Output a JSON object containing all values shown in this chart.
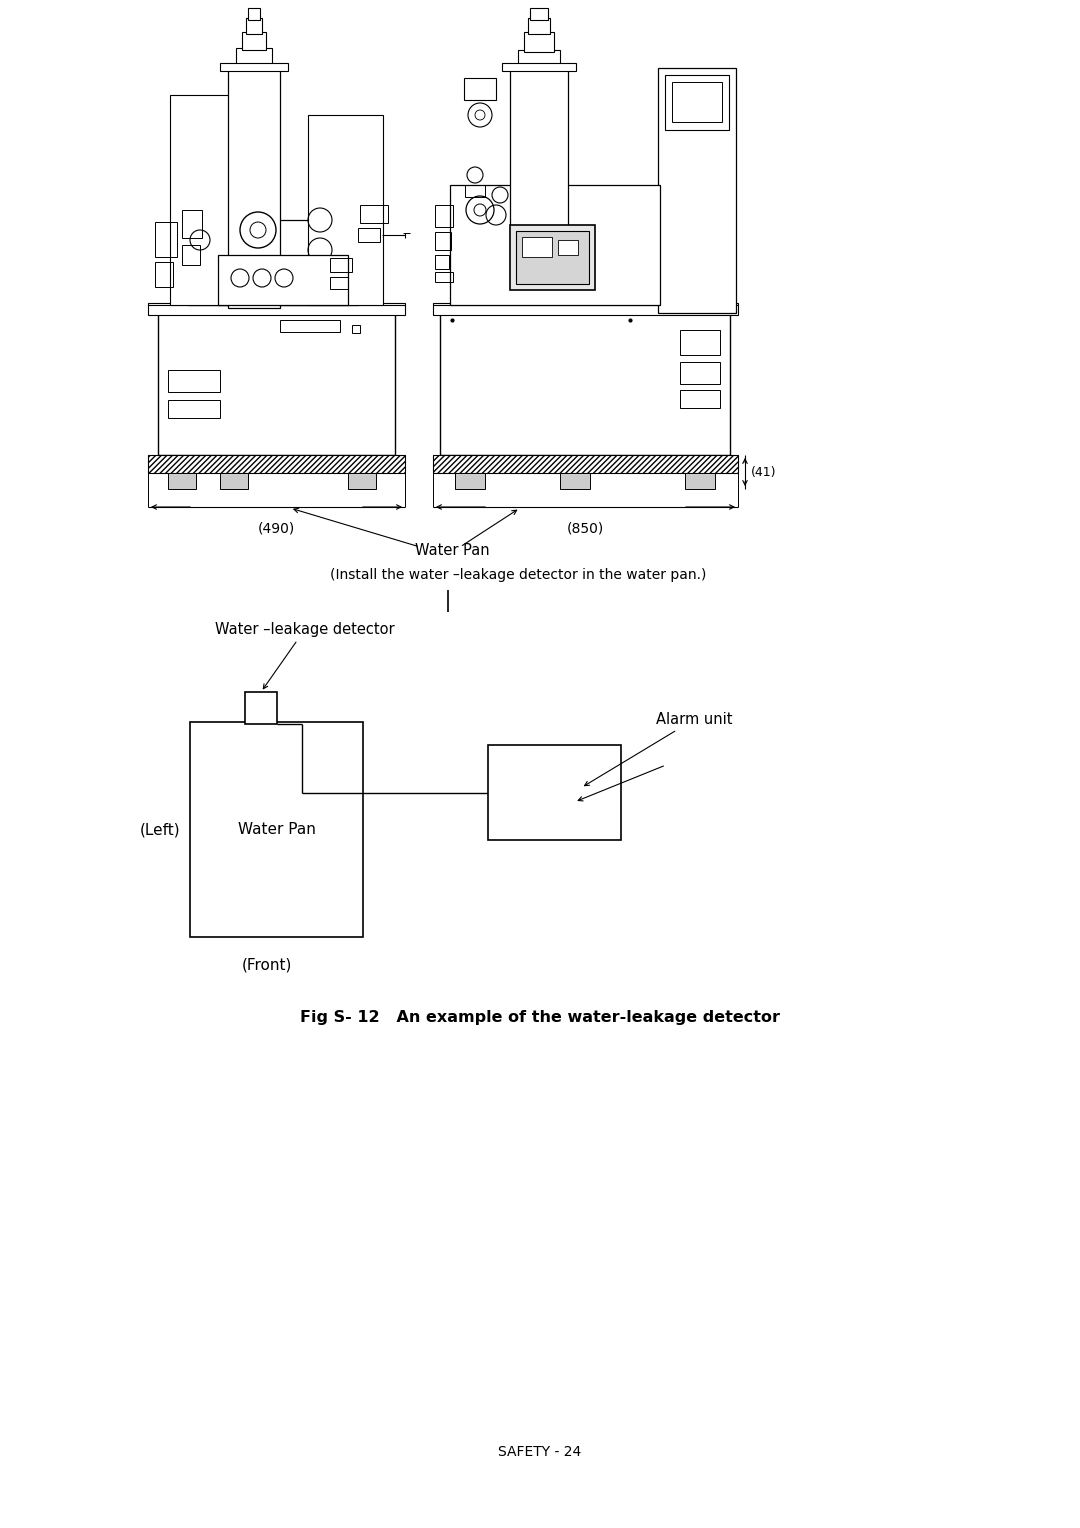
{
  "bg_color": "#ffffff",
  "fig_width": 10.8,
  "fig_height": 15.28,
  "title": "Fig S- 12   An example of the water-leakage detector",
  "footer": "SAFETY - 24",
  "diagram_subtitle": "（Install the water –leakage detector in the water pan.）",
  "diagram_subtitle2": "(Install the water –leakage detector in the water pan.)",
  "water_pan_label_top": "Water Pan",
  "dim_490": "(490)",
  "dim_850": "(850)",
  "dim_41": "(41)",
  "left_label": "(Left)",
  "front_label": "(Front)",
  "water_pan_label": "Water Pan",
  "water_leakage_detector_label": "Water –leakage detector",
  "alarm_unit_label": "Alarm unit"
}
